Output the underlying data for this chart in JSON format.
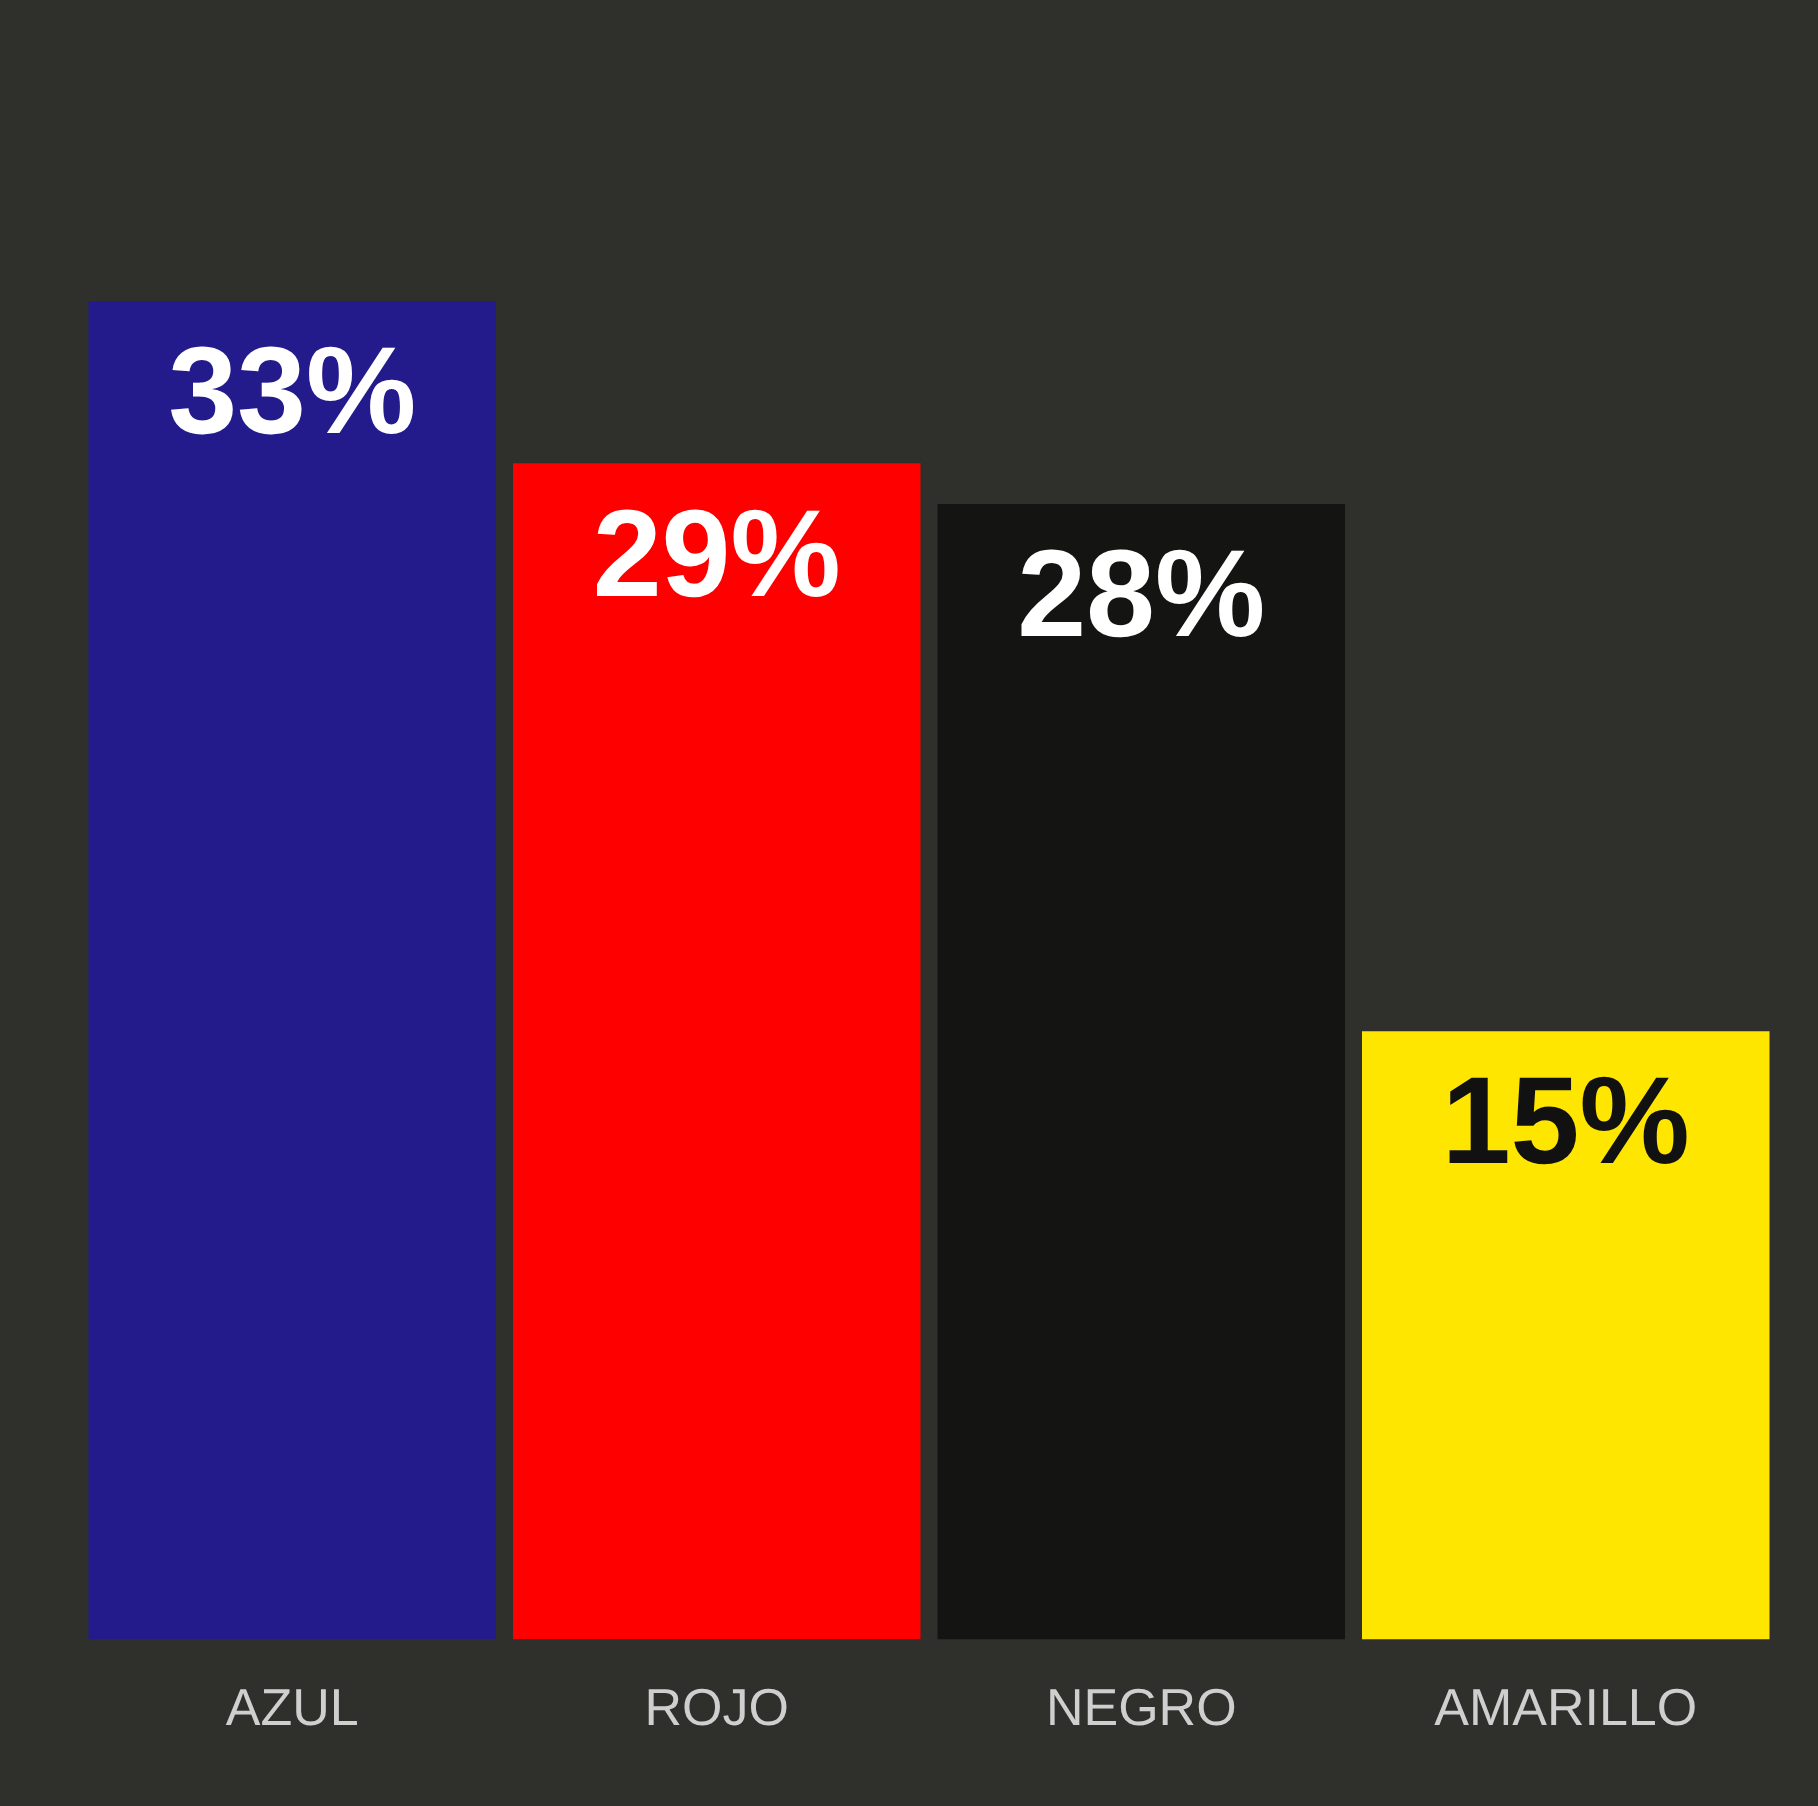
{
  "chart_data": {
    "type": "bar",
    "categories": [
      "AZUL",
      "ROJO",
      "NEGRO",
      "AMARILLO"
    ],
    "values": [
      33,
      29,
      28,
      15
    ],
    "colors": [
      "#231a8c",
      "#ff0000",
      "#141412",
      "#ffe600"
    ],
    "value_labels": [
      "33%",
      "29%",
      "28%",
      "15%"
    ],
    "tick_labels": "x",
    "grid": false,
    "legend": false
  }
}
